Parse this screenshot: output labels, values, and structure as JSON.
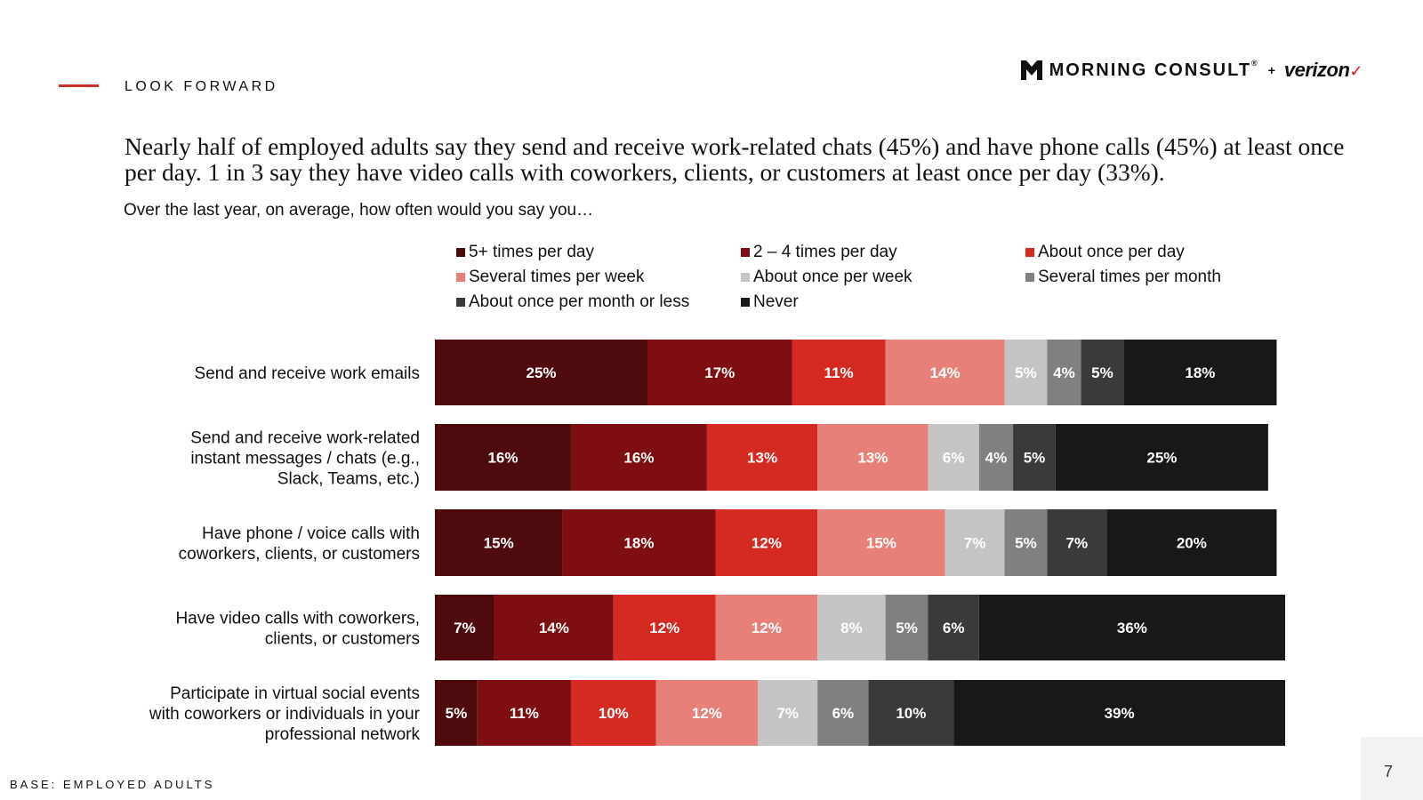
{
  "header": {
    "section_label": "LOOK FORWARD",
    "brand": {
      "name": "MORNING CONSULT",
      "sup": "®",
      "plus": "+",
      "partner": "verizon",
      "check": "✓"
    }
  },
  "headline": "Nearly half of employed adults say they send and receive work-related chats (45%) and have phone calls (45%) at least once per day. 1 in 3 say they have video calls with coworkers, clients, or customers at least once per day (33%).",
  "question": "Over the last year, on average, how often would you say you…",
  "footer": {
    "base_note": "BASE: EMPLOYED ADULTS",
    "page_number": "7"
  },
  "colors": {
    "accent": "#c8312a",
    "series": [
      "#4f0a0d",
      "#7f0e12",
      "#d42a22",
      "#e8807a",
      "#c4c4c4",
      "#808080",
      "#3a3a3a",
      "#181818"
    ]
  },
  "chart_data": {
    "type": "bar",
    "orientation": "horizontal",
    "stacked": true,
    "xlim": [
      0,
      100
    ],
    "legend_position": "top",
    "grid": false,
    "categories": [
      [
        "Send and receive work emails"
      ],
      [
        "Send and receive work-related",
        "instant messages / chats (e.g.,",
        "Slack, Teams, etc.)"
      ],
      [
        "Have phone / voice calls with",
        "coworkers, clients, or customers"
      ],
      [
        "Have video calls with coworkers,",
        "clients, or customers"
      ],
      [
        "Participate in virtual social events",
        "with coworkers or individuals in your",
        "professional network"
      ]
    ],
    "series": [
      {
        "name": "5+ times per day",
        "values": [
          25,
          16,
          15,
          7,
          5
        ]
      },
      {
        "name": "2 – 4 times per day",
        "values": [
          17,
          16,
          18,
          14,
          11
        ]
      },
      {
        "name": "About once per day",
        "values": [
          11,
          13,
          12,
          12,
          10
        ]
      },
      {
        "name": "Several times per week",
        "values": [
          14,
          13,
          15,
          12,
          12
        ]
      },
      {
        "name": "About once per week",
        "values": [
          5,
          6,
          7,
          8,
          7
        ]
      },
      {
        "name": "Several times per month",
        "values": [
          4,
          4,
          5,
          5,
          6
        ]
      },
      {
        "name": "About once per month or less",
        "values": [
          5,
          5,
          7,
          6,
          10
        ]
      },
      {
        "name": "Never",
        "values": [
          18,
          25,
          20,
          36,
          39
        ]
      }
    ]
  }
}
